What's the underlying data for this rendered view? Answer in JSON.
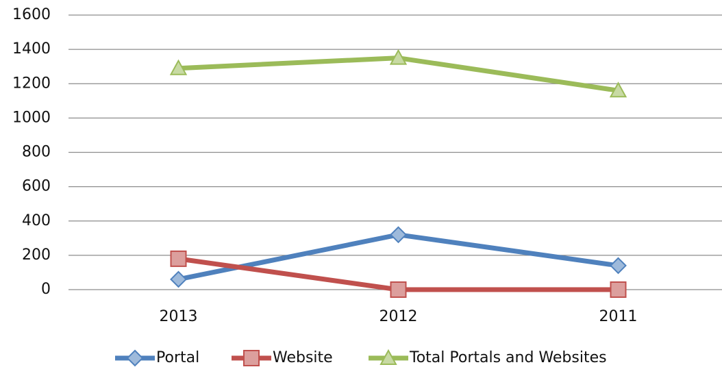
{
  "chart_data": {
    "type": "line",
    "categories": [
      "2013",
      "2012",
      "2011"
    ],
    "series": [
      {
        "name": "Portal",
        "color": "#4f81bd",
        "values": [
          60,
          320,
          140
        ]
      },
      {
        "name": "Website",
        "color": "#c0504d",
        "values": [
          180,
          0,
          0
        ]
      },
      {
        "name": "Total Portals and Websites",
        "color": "#9bbb59",
        "values": [
          1290,
          1350,
          1160
        ]
      }
    ],
    "ylim": [
      0,
      1600
    ],
    "yticks": [
      0,
      200,
      400,
      600,
      800,
      1000,
      1200,
      1400,
      1600
    ],
    "grid": true,
    "legend": "bottom"
  }
}
